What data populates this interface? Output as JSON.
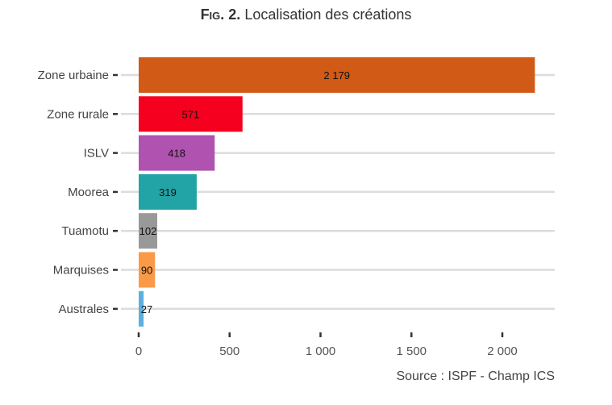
{
  "title": {
    "prefix": "Fig. 2.",
    "text": "Localisation des créations"
  },
  "source": "Source : ISPF - Champ ICS",
  "chart_data": {
    "type": "bar",
    "orientation": "horizontal",
    "title": "Fig. 2. Localisation des créations",
    "categories": [
      "Zone urbaine",
      "Zone rurale",
      "ISLV",
      "Moorea",
      "Tuamotu",
      "Marquises",
      "Australes"
    ],
    "values": [
      2179,
      571,
      418,
      319,
      102,
      90,
      27
    ],
    "data_labels": [
      "2 179",
      "571",
      "418",
      "319",
      "102",
      "90",
      "27"
    ],
    "colors": [
      "#d05a16",
      "#f5001f",
      "#b052b0",
      "#22a3a5",
      "#999999",
      "#f89a48",
      "#5cb0e0"
    ],
    "xlim": [
      0,
      2290
    ],
    "xticks": [
      0,
      500,
      1000,
      1500,
      2000
    ],
    "xtick_labels": [
      "0",
      "500",
      "1 000",
      "1 500",
      "2 000"
    ],
    "grid": "horizontal major",
    "xlabel": "",
    "ylabel": ""
  }
}
